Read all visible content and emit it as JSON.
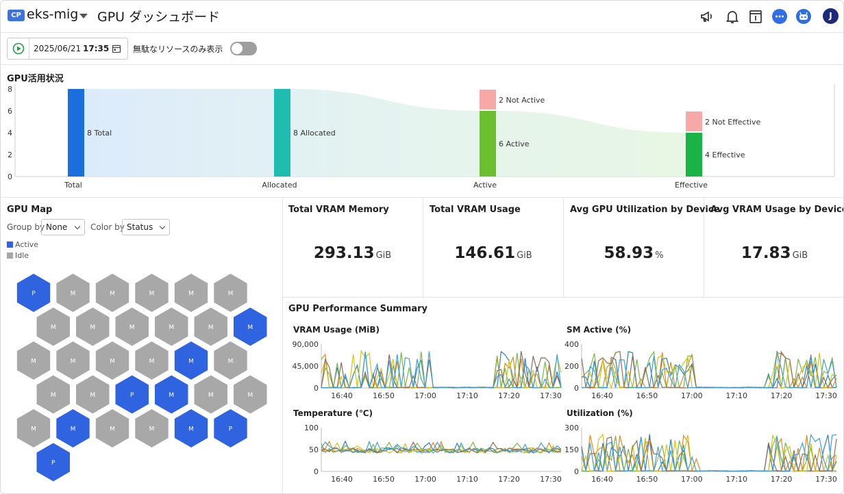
{
  "header": {
    "badge": "CP",
    "app_name": "eks-mig",
    "page_title": "GPU ダッシュボード",
    "avatar_initial": "J",
    "icons": [
      "megaphone-icon",
      "bell-icon",
      "panel-icon",
      "chat-icon",
      "bot-icon"
    ]
  },
  "toolbar": {
    "date": "2025/06/21",
    "time": "17:35",
    "filter_label": "無駄なリソースのみ表示",
    "filter_enabled": false
  },
  "gpu_usage": {
    "title": "GPU活用状況",
    "chart_data": {
      "type": "bar",
      "categories": [
        "Total",
        "Allocated",
        "Active",
        "Effective"
      ],
      "series": [
        {
          "name": "",
          "values": [
            8,
            8,
            6,
            4
          ]
        },
        {
          "name": "",
          "values": [
            0,
            0,
            2,
            2
          ]
        }
      ],
      "data_labels": [
        [
          "8 Total",
          "8 Allocated",
          "6 Active",
          "4 Effective"
        ],
        [
          "",
          "",
          "2 Not Active",
          "2 Not Effective"
        ]
      ],
      "y_ticks": [
        "0",
        "2",
        "4",
        "6",
        "8"
      ],
      "ylim": [
        0,
        8
      ],
      "colors": [
        "#1a6fdc",
        "#1fbcb1",
        "#6cc02f",
        "#19b347"
      ],
      "inactive_color": "#f7a9a8"
    }
  },
  "gpu_map": {
    "title": "GPU Map",
    "group_by_label": "Group by",
    "group_by_value": "None",
    "color_by_label": "Color by",
    "color_by_value": "Status",
    "legend": [
      {
        "label": "Active",
        "color": "#2f63e0"
      },
      {
        "label": "Idle",
        "color": "#a8a8a8"
      }
    ],
    "rows": [
      [
        {
          "l": "P",
          "s": "active"
        },
        {
          "l": "M",
          "s": "idle"
        },
        {
          "l": "M",
          "s": "idle"
        },
        {
          "l": "M",
          "s": "idle"
        },
        {
          "l": "M",
          "s": "idle"
        },
        {
          "l": "M",
          "s": "idle"
        }
      ],
      [
        {
          "l": "M",
          "s": "idle"
        },
        {
          "l": "M",
          "s": "idle"
        },
        {
          "l": "M",
          "s": "idle"
        },
        {
          "l": "M",
          "s": "idle"
        },
        {
          "l": "M",
          "s": "idle"
        },
        {
          "l": "M",
          "s": "active"
        }
      ],
      [
        {
          "l": "M",
          "s": "idle"
        },
        {
          "l": "M",
          "s": "idle"
        },
        {
          "l": "M",
          "s": "idle"
        },
        {
          "l": "M",
          "s": "idle"
        },
        {
          "l": "M",
          "s": "active"
        },
        {
          "l": "M",
          "s": "idle"
        }
      ],
      [
        {
          "l": "M",
          "s": "idle"
        },
        {
          "l": "M",
          "s": "idle"
        },
        {
          "l": "P",
          "s": "active"
        },
        {
          "l": "M",
          "s": "active"
        },
        {
          "l": "M",
          "s": "idle"
        },
        {
          "l": "M",
          "s": "idle"
        }
      ],
      [
        {
          "l": "M",
          "s": "idle"
        },
        {
          "l": "M",
          "s": "active"
        },
        {
          "l": "M",
          "s": "idle"
        },
        {
          "l": "M",
          "s": "idle"
        },
        {
          "l": "M",
          "s": "active"
        },
        {
          "l": "P",
          "s": "active"
        }
      ],
      [
        {
          "l": "P",
          "s": "active"
        }
      ]
    ]
  },
  "stats": [
    {
      "title": "Total VRAM Memory",
      "value": "293.13",
      "unit": "GiB"
    },
    {
      "title": "Total VRAM Usage",
      "value": "146.61",
      "unit": "GiB"
    },
    {
      "title": "Avg GPU Utilization by Device",
      "value": "58.93",
      "unit": "%"
    },
    {
      "title": "Avg VRAM Usage by Device",
      "value": "17.83",
      "unit": "GiB"
    }
  ],
  "performance": {
    "title": "GPU Performance Summary",
    "x_ticks": [
      "16:40",
      "16:50",
      "17:00",
      "17:10",
      "17:20",
      "17:30"
    ],
    "series_colors": [
      "#2c7fb8",
      "#e08a1e",
      "#7ab648",
      "#d6c21a",
      "#8c6d5a",
      "#3aa1d8"
    ],
    "charts": [
      {
        "title": "VRAM Usage (MiB)",
        "y_ticks": [
          "0",
          "45,000",
          "90,000"
        ],
        "ymax": 90000
      },
      {
        "title": "SM Active (%)",
        "y_ticks": [
          "0",
          "200",
          "400"
        ],
        "ymax": 400
      },
      {
        "title": "Temperature (℃)",
        "y_ticks": [
          "0",
          "50",
          "100"
        ],
        "ymax": 100
      },
      {
        "title": "Utilization (%)",
        "y_ticks": [
          "0",
          "150",
          "300"
        ],
        "ymax": 300
      }
    ]
  }
}
